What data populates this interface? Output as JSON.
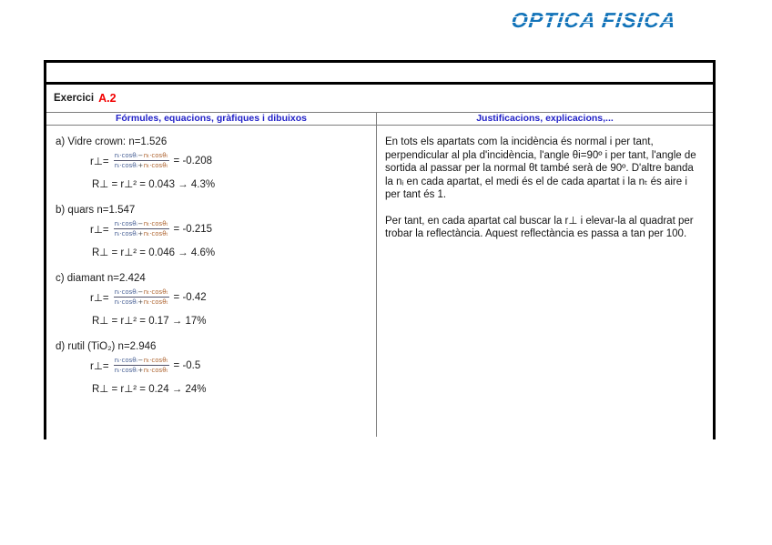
{
  "logo": {
    "text": "OPTICA FISICA"
  },
  "colors": {
    "logo_blue": "#1273b9",
    "header_blue": "#2222c8",
    "accent_red": "#f20000",
    "frac_blue": "#4a6296",
    "frac_orange": "#ae6430"
  },
  "exercise": {
    "label": "Exercici",
    "number": "A.2"
  },
  "headers": {
    "left": "Fórmules, equacions, gràfiques i dibuixos",
    "right": "Justificacions, explicacions,..."
  },
  "formulas": [
    {
      "title": "a)  Vidre crown: n=1.526",
      "r_prefix": "r⊥=",
      "num_a": "nᵢ·cosθᵢ",
      "num_op": "−",
      "num_b": "nₜ·cosθₜ",
      "den_a": "nᵢ·cosθᵢ",
      "den_op": "+",
      "den_b": "nₜ·cosθₜ",
      "r_result": "= -0.208",
      "reflectance": "R⊥ = r⊥² = 0.043 → 4.3%"
    },
    {
      "title": "b)  quars n=1.547",
      "r_prefix": "r⊥=",
      "num_a": "nᵢ·cosθᵢ",
      "num_op": "−",
      "num_b": "nₜ·cosθₜ",
      "den_a": "nᵢ·cosθᵢ",
      "den_op": "+",
      "den_b": "nₜ·cosθₜ",
      "r_result": "= -0.215",
      "reflectance": "R⊥ = r⊥² = 0.046 → 4.6%"
    },
    {
      "title": "c)  diamant n=2.424",
      "r_prefix": "r⊥=",
      "num_a": "nᵢ·cosθᵢ",
      "num_op": "−",
      "num_b": "nₜ·cosθₜ",
      "den_a": "nᵢ·cosθᵢ",
      "den_op": "+",
      "den_b": "nₜ·cosθₜ",
      "r_result": "= -0.42",
      "reflectance": "R⊥ = r⊥² = 0.17 → 17%"
    },
    {
      "title": "d)  rutil (TiO₂) n=2.946",
      "r_prefix": "r⊥=",
      "num_a": "nᵢ·cosθᵢ",
      "num_op": "−",
      "num_b": "nₜ·cosθₜ",
      "den_a": "nᵢ·cosθᵢ",
      "den_op": "+",
      "den_b": "nₜ·cosθₜ",
      "r_result": "= -0.5",
      "reflectance": "R⊥ = r⊥² = 0.24 → 24%"
    }
  ],
  "justifications": {
    "paragraph1": "En tots els apartats com la incidència és normal i per tant, perpendicular al pla d'incidència, l'angle θi=90º i per tant, l'angle de sortida al passar per la normal θt també serà de 90º. D'altre banda la nᵢ en cada apartat, el medi és el de cada apartat i la nₜ és aire i per tant és 1.",
    "paragraph2": "Per tant, en cada apartat cal buscar la r⊥ i elevar-la al quadrat per trobar la reflectància. Aquest reflectància es passa a tan per 100."
  }
}
